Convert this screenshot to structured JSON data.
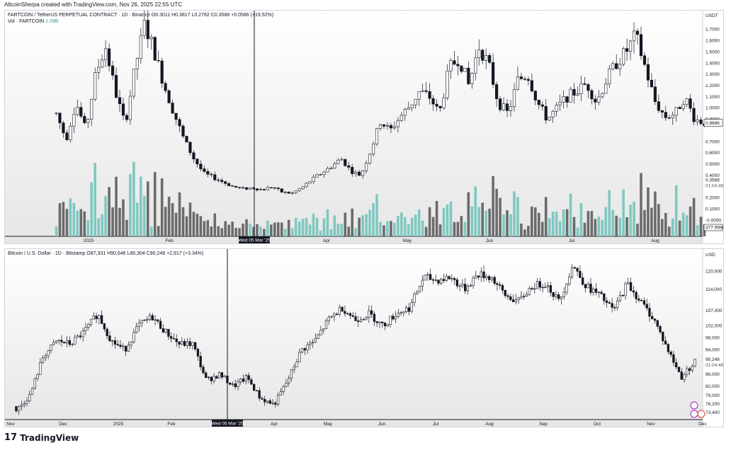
{
  "credit": "AltcoinSherpa created with TradingView.com, Nov 26, 2025 22:55 UTC",
  "brand": {
    "logo_mark": "17",
    "logo_word": "TradingView"
  },
  "crosshair_label": "Wed 05 Mar '25",
  "top_pane": {
    "title": "FARTCOIN / TetherUS PERPETUAL CONTRACT · 1D · Binance",
    "ohlc": "O0.3011 H0.3817 L0.2782 C0.3588 +0.0586 (+19.52%)",
    "vol_label": "Vol · FARTCOIN",
    "vol_value": "1.09B",
    "currency": "USDT",
    "last_price": "0.8686",
    "cursor_price": "0.3588",
    "countdown": "01:04:46",
    "vol_tag": "377.99M",
    "x_labels": [
      "2025",
      "Feb",
      "Apr",
      "May",
      "Jun",
      "Jul",
      "Aug"
    ],
    "y_labels": [
      "1.7000",
      "1.6000",
      "1.5000",
      "1.4000",
      "1.3000",
      "1.2000",
      "1.1000",
      "1.0000",
      "0.9000",
      "0.7000",
      "0.6000",
      "0.5000",
      "0.4000",
      "0.2000",
      "0.1000",
      "-0.0000"
    ]
  },
  "bottom_pane": {
    "title": "Bitcoin / U.S. Dollar · 1D · Bitstamp",
    "ohlc": "O87,331 H90,646 L86,304 C90,248 +2,917 (+3.34%)",
    "currency": "USD",
    "last_price": "90,248",
    "countdown": "01:04:46",
    "x_labels": [
      "Nov",
      "Dec",
      "2025",
      "Feb",
      "Apr",
      "May",
      "Jun",
      "Jul",
      "Aug",
      "Sep",
      "Oct",
      "Nov",
      "Dec"
    ],
    "y_labels": [
      "120,000",
      "114,000",
      "107,000",
      "102,000",
      "98,000",
      "94,000",
      "86,000",
      "82,000",
      "79,000",
      "76,200",
      "73,400"
    ]
  },
  "chart_data": [
    {
      "type": "candlestick",
      "title": "FARTCOIN / TetherUS PERPETUAL CONTRACT · 1D · Binance",
      "ylabel": "USDT",
      "ylim": [
        -0.08,
        1.78
      ],
      "x_ticks": [
        "2025",
        "Feb",
        "Apr",
        "May",
        "Jun",
        "Jul",
        "Aug"
      ],
      "close_path": [
        0.95,
        0.72,
        1.05,
        0.8,
        1.3,
        1.55,
        1.15,
        0.85,
        1.35,
        1.75,
        1.5,
        1.2,
        0.95,
        0.72,
        0.55,
        0.42,
        0.38,
        0.34,
        0.3,
        0.28,
        0.29,
        0.27,
        0.3,
        0.25,
        0.24,
        0.29,
        0.36,
        0.42,
        0.48,
        0.55,
        0.44,
        0.4,
        0.62,
        0.88,
        0.8,
        0.92,
        1.02,
        1.15,
        1.1,
        0.95,
        1.35,
        1.45,
        1.2,
        1.55,
        1.4,
        1.05,
        0.95,
        1.25,
        1.3,
        1.05,
        0.9,
        1.0,
        1.1,
        1.15,
        1.22,
        1.05,
        1.25,
        1.4,
        1.5,
        1.65,
        1.35,
        1.05,
        0.92,
        0.95,
        1.1,
        0.9,
        0.87
      ],
      "volume_label": "Vol · FARTCOIN",
      "last_price": 0.8686
    },
    {
      "type": "candlestick",
      "title": "Bitcoin / U.S. Dollar · 1D · Bitstamp",
      "ylabel": "USD",
      "ylim": [
        72000,
        124500
      ],
      "x_ticks": [
        "Nov",
        "Dec",
        "2025",
        "Feb",
        "Apr",
        "May",
        "Jun",
        "Jul",
        "Aug",
        "Sep",
        "Oct",
        "Nov",
        "Dec"
      ],
      "close_path": [
        74000,
        79000,
        92000,
        97000,
        96000,
        100000,
        106000,
        97000,
        94000,
        102000,
        105000,
        100000,
        96000,
        96000,
        84000,
        86000,
        82000,
        85000,
        78000,
        76000,
        84000,
        94000,
        97000,
        104000,
        108000,
        104000,
        106000,
        102000,
        106000,
        108000,
        118000,
        117000,
        118000,
        114000,
        119000,
        118000,
        112000,
        110000,
        115000,
        116000,
        110000,
        122000,
        115000,
        112000,
        107000,
        116000,
        110000,
        104000,
        94000,
        85000,
        90248
      ],
      "last_price": 90248
    }
  ]
}
